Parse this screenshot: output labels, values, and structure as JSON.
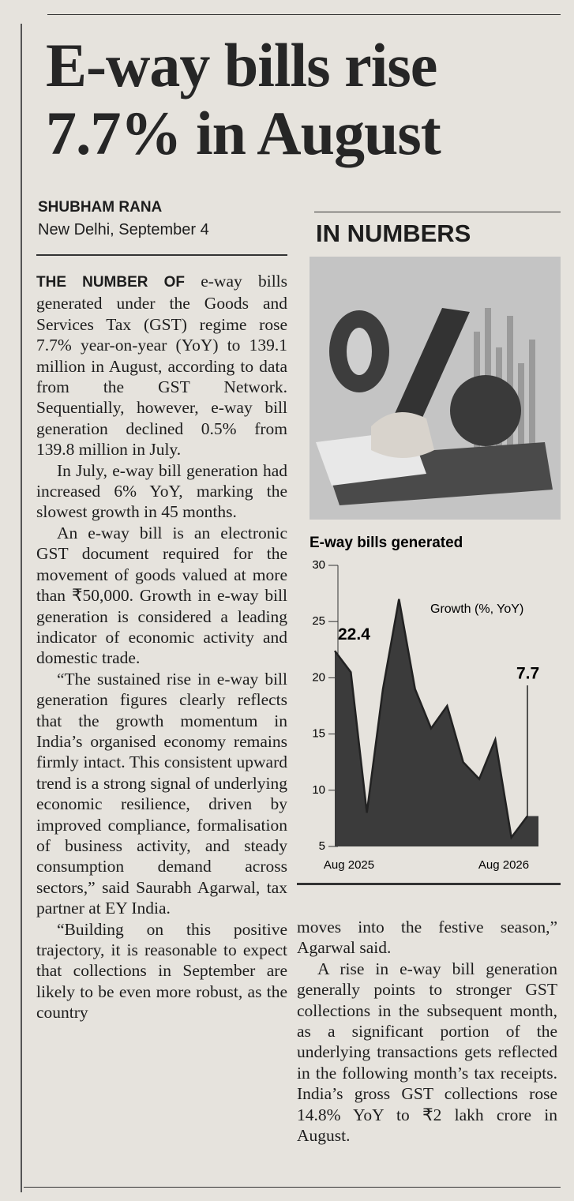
{
  "headline": "E-way bills rise 7.7% in August",
  "byline": {
    "author": "SHUBHAM RANA",
    "dateline": "New Delhi, September 4"
  },
  "article": {
    "lead": "THE NUMBER OF",
    "left_paragraphs": [
      "e-way bills generated under the Goods and Services Tax (GST) regime rose 7.7% year-on-year (YoY) to 139.1 million in August, according to data from the GST Network. Sequentially, however, e-way bill generation declined 0.5% from 139.8 million in July.",
      "In July, e-way bill generation had increased 6% YoY, marking the slowest growth in 45 months.",
      "An e-way bill is an electronic GST document required for the movement of goods valued at more than ₹50,000. Growth in e-way bill generation is considered a leading indicator of economic activity and domestic trade.",
      "“The sustained rise in e-way bill generation figures clearly reflects that the growth momentum in India’s organised economy remains firmly intact. This consistent upward trend is a strong signal of underlying economic resilience, driven by improved compliance, formalisation of business activity, and steady consumption demand across sectors,” said Saurabh Agarwal, tax partner at EY India.",
      "“Building on this positive trajectory, it is reasonable to expect that collections in September are likely to be even more robust, as the country"
    ],
    "right_paragraphs": [
      "moves into the festive season,” Agarwal said.",
      "A rise in e-way bill generation generally points to stronger GST collections in the subsequent month, as a significant portion of the underlying transactions gets reflected in the following month’s tax receipts. India’s gross GST collections rose 14.8% YoY to ₹2 lakh crore in August."
    ]
  },
  "sidebar": {
    "title": "IN NUMBERS"
  },
  "chart_data": {
    "type": "area",
    "title": "E-way bills generated",
    "categories": [
      "Aug 2025",
      null,
      null,
      null,
      null,
      null,
      null,
      null,
      null,
      null,
      null,
      null,
      "Aug 2026"
    ],
    "series": [
      {
        "name": "Growth (%, YoY)",
        "color": "#3b3b3b",
        "values": [
          22.4,
          20.5,
          8,
          19,
          27,
          19,
          15.5,
          17.5,
          12.5,
          11,
          14.5,
          5.8,
          7.7
        ]
      }
    ],
    "ylim": [
      5,
      30
    ],
    "yticks": [
      5,
      10,
      15,
      20,
      25,
      30
    ]
  }
}
